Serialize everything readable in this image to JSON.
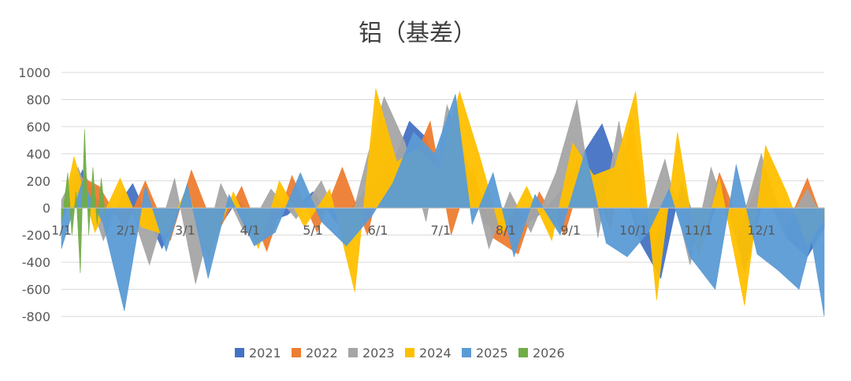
{
  "chart_data": {
    "type": "area",
    "title": "铝（基差）",
    "xlabel": "",
    "ylabel": "",
    "ylim": [
      -800,
      1000
    ],
    "yticks": [
      1000,
      800,
      600,
      400,
      200,
      0,
      -200,
      -400,
      -600,
      -800
    ],
    "grid": true,
    "legend_position": "bottom",
    "x_tick_labels": [
      "1/1",
      "2/1",
      "3/1",
      "4/1",
      "5/1",
      "6/1",
      "7/1",
      "8/1",
      "9/1",
      "10/1",
      "11/1",
      "12/1"
    ],
    "x_tick_days": [
      0,
      31,
      59,
      90,
      120,
      151,
      181,
      212,
      243,
      273,
      304,
      334
    ],
    "days_in_year": 365,
    "series": [
      {
        "name": "2021",
        "color": "#4472C4",
        "points": [
          [
            0,
            -100
          ],
          [
            10,
            280
          ],
          [
            22,
            -90
          ],
          [
            34,
            180
          ],
          [
            48,
            -300
          ],
          [
            60,
            120
          ],
          [
            72,
            -220
          ],
          [
            84,
            60
          ],
          [
            96,
            -120
          ],
          [
            108,
            -50
          ],
          [
            120,
            120
          ],
          [
            132,
            -120
          ],
          [
            146,
            150
          ],
          [
            156,
            240
          ],
          [
            166,
            640
          ],
          [
            174,
            520
          ],
          [
            182,
            200
          ],
          [
            192,
            420
          ],
          [
            202,
            -120
          ],
          [
            214,
            -150
          ],
          [
            226,
            -80
          ],
          [
            236,
            80
          ],
          [
            248,
            380
          ],
          [
            258,
            620
          ],
          [
            268,
            180
          ],
          [
            276,
            -250
          ],
          [
            286,
            -520
          ],
          [
            296,
            200
          ],
          [
            306,
            -260
          ],
          [
            316,
            160
          ],
          [
            326,
            -480
          ],
          [
            336,
            130
          ],
          [
            346,
            -220
          ],
          [
            356,
            -360
          ],
          [
            364,
            -150
          ]
        ]
      },
      {
        "name": "2022",
        "color": "#ED7D31",
        "points": [
          [
            0,
            -80
          ],
          [
            8,
            240
          ],
          [
            18,
            160
          ],
          [
            30,
            -160
          ],
          [
            40,
            200
          ],
          [
            52,
            -240
          ],
          [
            62,
            280
          ],
          [
            74,
            -200
          ],
          [
            86,
            160
          ],
          [
            98,
            -320
          ],
          [
            110,
            240
          ],
          [
            122,
            -180
          ],
          [
            134,
            300
          ],
          [
            146,
            -200
          ],
          [
            156,
            440
          ],
          [
            166,
            280
          ],
          [
            176,
            640
          ],
          [
            186,
            -200
          ],
          [
            196,
            300
          ],
          [
            206,
            -220
          ],
          [
            218,
            -340
          ],
          [
            228,
            120
          ],
          [
            240,
            -200
          ],
          [
            250,
            320
          ],
          [
            262,
            -160
          ],
          [
            272,
            680
          ],
          [
            282,
            -300
          ],
          [
            292,
            120
          ],
          [
            304,
            -320
          ],
          [
            314,
            260
          ],
          [
            324,
            -120
          ],
          [
            336,
            280
          ],
          [
            346,
            -140
          ],
          [
            356,
            220
          ],
          [
            364,
            -120
          ]
        ]
      },
      {
        "name": "2023",
        "color": "#A5A5A5",
        "points": [
          [
            0,
            60
          ],
          [
            8,
            300
          ],
          [
            20,
            -240
          ],
          [
            30,
            140
          ],
          [
            42,
            -420
          ],
          [
            54,
            220
          ],
          [
            64,
            -560
          ],
          [
            76,
            180
          ],
          [
            88,
            -200
          ],
          [
            100,
            140
          ],
          [
            112,
            -80
          ],
          [
            124,
            200
          ],
          [
            136,
            -220
          ],
          [
            146,
            380
          ],
          [
            154,
            820
          ],
          [
            164,
            480
          ],
          [
            174,
            -100
          ],
          [
            184,
            760
          ],
          [
            194,
            320
          ],
          [
            204,
            -300
          ],
          [
            214,
            120
          ],
          [
            224,
            -180
          ],
          [
            236,
            260
          ],
          [
            246,
            800
          ],
          [
            256,
            -220
          ],
          [
            266,
            640
          ],
          [
            276,
            -200
          ],
          [
            288,
            360
          ],
          [
            300,
            -420
          ],
          [
            310,
            300
          ],
          [
            322,
            -240
          ],
          [
            334,
            400
          ],
          [
            344,
            -180
          ],
          [
            356,
            140
          ],
          [
            364,
            -100
          ]
        ]
      },
      {
        "name": "2024",
        "color": "#FFC000",
        "points": [
          [
            0,
            -60
          ],
          [
            6,
            380
          ],
          [
            16,
            -180
          ],
          [
            28,
            220
          ],
          [
            38,
            -140
          ],
          [
            50,
            -200
          ],
          [
            60,
            160
          ],
          [
            70,
            -380
          ],
          [
            82,
            120
          ],
          [
            94,
            -300
          ],
          [
            104,
            200
          ],
          [
            116,
            -140
          ],
          [
            128,
            140
          ],
          [
            140,
            -620
          ],
          [
            150,
            880
          ],
          [
            160,
            340
          ],
          [
            170,
            440
          ],
          [
            180,
            280
          ],
          [
            190,
            860
          ],
          [
            200,
            360
          ],
          [
            210,
            -200
          ],
          [
            222,
            160
          ],
          [
            234,
            -240
          ],
          [
            244,
            480
          ],
          [
            254,
            240
          ],
          [
            264,
            300
          ],
          [
            274,
            860
          ],
          [
            284,
            -680
          ],
          [
            294,
            560
          ],
          [
            304,
            -380
          ],
          [
            314,
            220
          ],
          [
            326,
            -720
          ],
          [
            336,
            460
          ],
          [
            346,
            120
          ],
          [
            356,
            -280
          ],
          [
            364,
            -80
          ]
        ]
      },
      {
        "name": "2025",
        "color": "#5B9BD5",
        "points": [
          [
            0,
            -300
          ],
          [
            10,
            200
          ],
          [
            20,
            -120
          ],
          [
            30,
            -760
          ],
          [
            40,
            160
          ],
          [
            50,
            -320
          ],
          [
            60,
            180
          ],
          [
            70,
            -520
          ],
          [
            80,
            100
          ],
          [
            92,
            -280
          ],
          [
            102,
            -180
          ],
          [
            114,
            260
          ],
          [
            124,
            -100
          ],
          [
            136,
            -280
          ],
          [
            148,
            -60
          ],
          [
            158,
            180
          ],
          [
            168,
            560
          ],
          [
            178,
            400
          ],
          [
            188,
            840
          ],
          [
            196,
            -120
          ],
          [
            206,
            260
          ],
          [
            216,
            -360
          ],
          [
            226,
            100
          ],
          [
            238,
            -200
          ],
          [
            250,
            420
          ],
          [
            260,
            -260
          ],
          [
            270,
            -360
          ],
          [
            280,
            -180
          ],
          [
            290,
            140
          ],
          [
            300,
            -360
          ],
          [
            312,
            -600
          ],
          [
            322,
            320
          ],
          [
            332,
            -340
          ],
          [
            342,
            -460
          ],
          [
            352,
            -600
          ],
          [
            358,
            -240
          ],
          [
            364,
            -800
          ]
        ]
      },
      {
        "name": "2026",
        "color": "#70AD47",
        "points": [
          [
            0,
            -120
          ],
          [
            3,
            260
          ],
          [
            5,
            -200
          ],
          [
            7,
            120
          ],
          [
            9,
            -480
          ],
          [
            11,
            580
          ],
          [
            13,
            -200
          ],
          [
            15,
            300
          ],
          [
            17,
            -120
          ],
          [
            19,
            220
          ],
          [
            21,
            -60
          ]
        ]
      }
    ]
  }
}
